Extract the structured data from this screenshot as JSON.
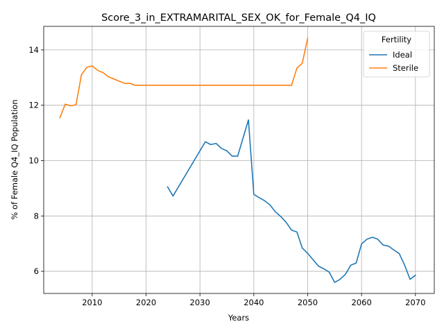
{
  "chart_data": {
    "type": "line",
    "title": "Score_3_in_EXTRAMARITAL_SEX_OK_for_Female_Q4_IQ",
    "xlabel": "Years",
    "ylabel": "% of Female Q4_IQ Population",
    "xlim": [
      2001,
      2073.5
    ],
    "ylim": [
      5.2,
      14.85
    ],
    "xticks": [
      2010,
      2020,
      2030,
      2040,
      2050,
      2060,
      2070
    ],
    "yticks": [
      6,
      8,
      10,
      12,
      14
    ],
    "grid": true,
    "legend": {
      "title": "Fertility",
      "position": "top-right"
    },
    "colors": {
      "Ideal": "#1f77b4",
      "Sterile": "#ff7f0e"
    },
    "series": [
      {
        "name": "Ideal",
        "x": [
          2024,
          2025,
          2031,
          2032,
          2033,
          2034,
          2035,
          2036,
          2037,
          2039,
          2040,
          2041,
          2042,
          2043,
          2044,
          2045,
          2046,
          2047,
          2048,
          2049,
          2050,
          2051,
          2052,
          2053,
          2054,
          2055,
          2056,
          2057,
          2058,
          2059,
          2060,
          2061,
          2062,
          2063,
          2064,
          2065,
          2066,
          2067,
          2068,
          2069,
          2070
        ],
        "y": [
          9.05,
          8.72,
          10.68,
          10.58,
          10.62,
          10.44,
          10.35,
          10.16,
          10.16,
          11.47,
          8.78,
          8.66,
          8.55,
          8.4,
          8.15,
          7.98,
          7.77,
          7.49,
          7.42,
          6.84,
          6.65,
          6.42,
          6.19,
          6.09,
          5.97,
          5.6,
          5.71,
          5.89,
          6.22,
          6.3,
          6.99,
          7.16,
          7.23,
          7.16,
          6.95,
          6.91,
          6.77,
          6.64,
          6.22,
          5.71,
          5.86
        ]
      },
      {
        "name": "Sterile",
        "x": [
          2004,
          2005,
          2006,
          2007,
          2008,
          2009,
          2010,
          2011,
          2012,
          2013,
          2014,
          2015,
          2016,
          2017,
          2018,
          2047,
          2048,
          2049,
          2050
        ],
        "y": [
          11.55,
          12.04,
          11.98,
          12.02,
          13.1,
          13.37,
          13.42,
          13.26,
          13.18,
          13.03,
          12.95,
          12.87,
          12.79,
          12.79,
          12.72,
          12.72,
          13.34,
          13.52,
          14.42
        ]
      }
    ]
  }
}
